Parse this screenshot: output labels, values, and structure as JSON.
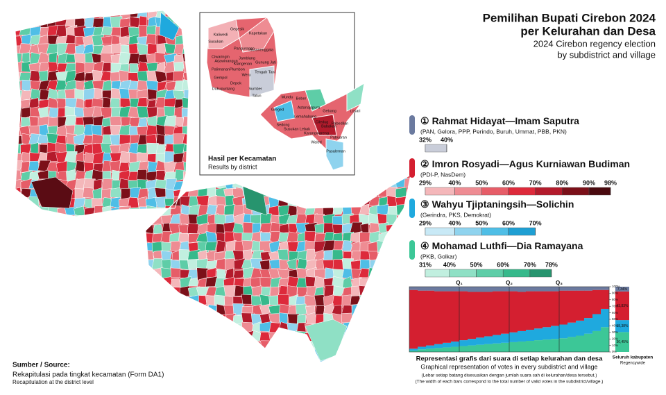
{
  "title": "Pemilihan Bupati Cirebon 2024",
  "title_line2": "per Kelurahan dan Desa",
  "subtitle": [
    "2024 Cirebon regency election",
    "by subdistrict and village"
  ],
  "candidates": [
    {
      "number": "①",
      "name": "Rahmat Hidayat—Imam Saputra",
      "parties": "(PAN, Gelora, PPP, Perindo, Buruh, Ummat, PBB, PKN)",
      "color": "#6b7a9f",
      "scale": [
        {
          "value": 32,
          "label": "32%"
        },
        {
          "value": 40,
          "label": "40%"
        }
      ],
      "scale_colors": [
        "#c9cdd9"
      ]
    },
    {
      "number": "②",
      "name": "Imron Rosyadi—Agus Kurniawan Budiman",
      "parties": "(PDI-P, NasDem)",
      "color": "#d41f30",
      "scale": [
        {
          "value": 29,
          "label": "29%"
        },
        {
          "value": 40,
          "label": "40%"
        },
        {
          "value": 50,
          "label": "50%"
        },
        {
          "value": 60,
          "label": "60%"
        },
        {
          "value": 70,
          "label": "70%"
        },
        {
          "value": 80,
          "label": "80%"
        },
        {
          "value": 90,
          "label": "90%"
        },
        {
          "value": 98,
          "label": "98%"
        }
      ],
      "scale_colors": [
        "#f4b7ba",
        "#ee8c93",
        "#e65d68",
        "#dd2a3b",
        "#b31b2c",
        "#7b1019",
        "#4a0a0f"
      ]
    },
    {
      "number": "③",
      "name": "Wahyu Tjiptaningsih—Solichin",
      "parties": "(Gerindra, PKS, Demokrat)",
      "color": "#1fa9de",
      "scale": [
        {
          "value": 29,
          "label": "29%"
        },
        {
          "value": 40,
          "label": "40%"
        },
        {
          "value": 50,
          "label": "50%"
        },
        {
          "value": 60,
          "label": "60%"
        },
        {
          "value": 70,
          "label": "70%"
        }
      ],
      "scale_colors": [
        "#c8e9f6",
        "#8fd3ee",
        "#4fbee6",
        "#1f9fd3"
      ]
    },
    {
      "number": "④",
      "name": "Mohamad Luthfi—Dia Ramayana",
      "parties": "(PKB, Golkar)",
      "color": "#3cc797",
      "scale": [
        {
          "value": 31,
          "label": "31%"
        },
        {
          "value": 40,
          "label": "40%"
        },
        {
          "value": 50,
          "label": "50%"
        },
        {
          "value": 60,
          "label": "60%"
        },
        {
          "value": 70,
          "label": "70%"
        },
        {
          "value": 78,
          "label": "78%"
        }
      ],
      "scale_colors": [
        "#c1efdf",
        "#8fe0c5",
        "#5ecda7",
        "#36b98b",
        "#27946e"
      ]
    }
  ],
  "inset": {
    "title": "Hasil per Kecamatan",
    "subtitle": "Results by district",
    "districts": [
      "Kaliwedi",
      "Gegesik",
      "Kapetakan",
      "Susukan",
      "Panguragan",
      "Suranenggala",
      "Ciwaringin",
      "Arjawinangun",
      "Klangenan",
      "Jamblang",
      "Gunung Jati",
      "Palimanan",
      "Plumbon",
      "Weru",
      "Gempol",
      "Depok",
      "Tengah Tani",
      "Dukupuntang",
      "Sumber",
      "Talun",
      "Mundu",
      "Beber",
      "Greged",
      "Astanajapura",
      "Gebang",
      "Losari",
      "Sedong",
      "Lemahabang",
      "Pabedilan",
      "Susukan Lebak",
      "Babakan",
      "Karangwareng",
      "Waled",
      "Pabuaran",
      "Pasaleman",
      "Ciledug"
    ]
  },
  "source": {
    "heading": "Sumber / Source:",
    "text": "Rekapitulasi pada tingkat kecamatan (Form DA1)",
    "text_en": "Recapitulation at the district level"
  },
  "chart_data": {
    "type": "bar",
    "title": "Representasi grafis dari suara di setiap kelurahan dan desa",
    "subtitle": "Graphical representation of votes in every subdistrict and village",
    "notes": [
      "(Lebar setiap batang disesuaikan dengan jumlah suara sah di kelurahan/desa tersebut.)",
      "(The width of each bars correspond to the total number of valid votes in the subdistrict/village.)"
    ],
    "quartiles": [
      "Q₁",
      "Q₂",
      "Q₃"
    ],
    "ylim": [
      0,
      100
    ],
    "yticks": [
      {
        "value": 0,
        "label": "0%"
      },
      {
        "value": 10,
        "label": "10%"
      },
      {
        "value": 20,
        "label": "20%"
      },
      {
        "value": 30,
        "label": "30%"
      },
      {
        "value": 40,
        "label": "40%"
      },
      {
        "value": 50,
        "label": "50%"
      },
      {
        "value": 60,
        "label": "60%"
      },
      {
        "value": 70,
        "label": "70%"
      },
      {
        "value": 80,
        "label": "80%"
      },
      {
        "value": 90,
        "label": "90%"
      },
      {
        "value": 100,
        "label": "100%"
      }
    ],
    "series": [
      {
        "color": "#3cc797",
        "values": [
          2,
          4,
          5,
          6,
          7,
          8,
          9,
          10,
          11,
          12,
          13,
          14,
          15,
          16,
          17,
          18,
          19,
          20,
          21,
          23,
          25,
          28,
          32,
          38
        ]
      },
      {
        "color": "#1fa9de",
        "values": [
          3,
          4,
          5,
          6,
          7,
          8,
          9,
          10,
          11,
          12,
          13,
          14,
          15,
          16,
          17,
          18,
          19,
          20,
          21,
          22,
          23,
          24,
          26,
          28
        ]
      },
      {
        "color": "#d41f30",
        "values": [
          90,
          86,
          84,
          81,
          79,
          77,
          75,
          72,
          70,
          68,
          67,
          65,
          63,
          60,
          59,
          57,
          55,
          53,
          52,
          49,
          46,
          42,
          37,
          29
        ]
      },
      {
        "color": "#6b7a9f",
        "values": [
          5,
          6,
          6,
          7,
          7,
          7,
          7,
          8,
          8,
          8,
          7,
          7,
          7,
          8,
          7,
          7,
          7,
          7,
          6,
          6,
          6,
          6,
          5,
          5
        ]
      }
    ],
    "regencywide": {
      "label": "Seluruh kabupaten",
      "label_en": "Regencywide",
      "values": [
        30.45,
        18.38,
        43.83,
        7.34
      ],
      "value_labels": [
        "30,45%",
        "18,38%",
        "43,83%",
        "7,34%"
      ]
    }
  }
}
